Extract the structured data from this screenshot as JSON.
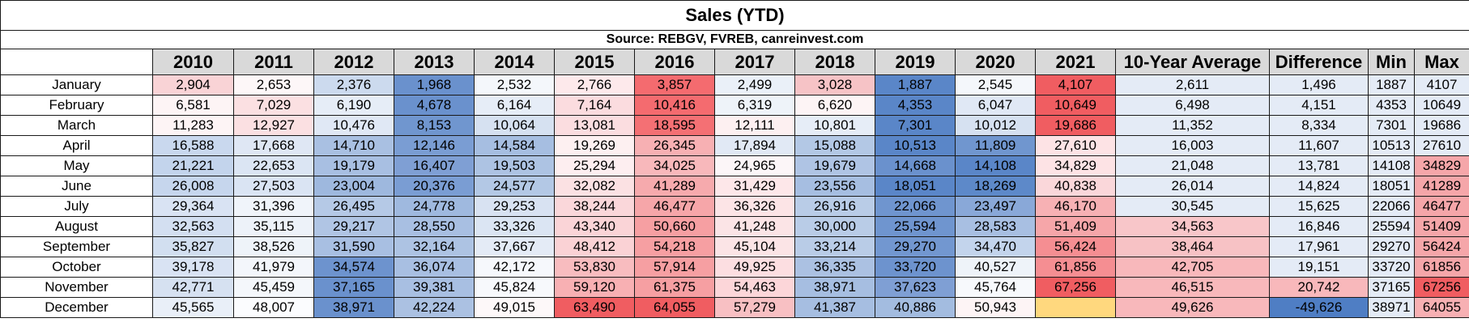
{
  "title": "Sales (YTD)",
  "source": "Source: REBGV, FVREB, canreinvest.com",
  "columns": [
    "2010",
    "2011",
    "2012",
    "2013",
    "2014",
    "2015",
    "2016",
    "2017",
    "2018",
    "2019",
    "2020",
    "2021",
    "10-Year Average",
    "Difference",
    "Min",
    "Max"
  ],
  "rows": [
    {
      "month": "January",
      "cells": [
        {
          "v": "2,904",
          "bg": "#f9d3d6"
        },
        {
          "v": "2,653",
          "bg": "#fdf7f8"
        },
        {
          "v": "2,376",
          "bg": "#ccdaee"
        },
        {
          "v": "1,968",
          "bg": "#6a91cd"
        },
        {
          "v": "2,532",
          "bg": "#f4f7fb"
        },
        {
          "v": "2,766",
          "bg": "#fde9eb"
        },
        {
          "v": "3,857",
          "bg": "#f46b6f"
        },
        {
          "v": "2,499",
          "bg": "#eaf0f8"
        },
        {
          "v": "3,028",
          "bg": "#f6c3c6"
        },
        {
          "v": "1,887",
          "bg": "#5a86c8"
        },
        {
          "v": "2,545",
          "bg": "#f4f7fb"
        },
        {
          "v": "4,107",
          "bg": "#f05d61"
        },
        {
          "v": "2,611",
          "bg": "#e4ebf6"
        },
        {
          "v": "1,496",
          "bg": "#e4ebf6"
        },
        {
          "v": "1887",
          "bg": "#e4ebf6"
        },
        {
          "v": "4107",
          "bg": "#e4ebf6"
        }
      ]
    },
    {
      "month": "February",
      "cells": [
        {
          "v": "6,581",
          "bg": "#fdf4f5"
        },
        {
          "v": "7,029",
          "bg": "#fbe0e2"
        },
        {
          "v": "6,190",
          "bg": "#e6edf7"
        },
        {
          "v": "4,678",
          "bg": "#6a91cd"
        },
        {
          "v": "6,164",
          "bg": "#e6edf7"
        },
        {
          "v": "7,164",
          "bg": "#fbdcdf"
        },
        {
          "v": "10,416",
          "bg": "#f46b6f"
        },
        {
          "v": "6,319",
          "bg": "#eef3f9"
        },
        {
          "v": "6,620",
          "bg": "#fdf4f5"
        },
        {
          "v": "4,353",
          "bg": "#5a86c8"
        },
        {
          "v": "6,047",
          "bg": "#e0e8f5"
        },
        {
          "v": "10,649",
          "bg": "#f05d61"
        },
        {
          "v": "6,498",
          "bg": "#e4ebf6"
        },
        {
          "v": "4,151",
          "bg": "#e4ebf6"
        },
        {
          "v": "4353",
          "bg": "#e4ebf6"
        },
        {
          "v": "10649",
          "bg": "#e4ebf6"
        }
      ]
    },
    {
      "month": "March",
      "cells": [
        {
          "v": "11,283",
          "bg": "#fdf4f5"
        },
        {
          "v": "12,927",
          "bg": "#fbe0e2"
        },
        {
          "v": "10,476",
          "bg": "#e0e8f5"
        },
        {
          "v": "8,153",
          "bg": "#7096cf"
        },
        {
          "v": "10,064",
          "bg": "#d6e1f1"
        },
        {
          "v": "13,081",
          "bg": "#fbdde0"
        },
        {
          "v": "18,595",
          "bg": "#f47074"
        },
        {
          "v": "12,111",
          "bg": "#fdf0f1"
        },
        {
          "v": "10,801",
          "bg": "#e6edf7"
        },
        {
          "v": "7,301",
          "bg": "#5a86c8"
        },
        {
          "v": "10,012",
          "bg": "#d6e1f1"
        },
        {
          "v": "19,686",
          "bg": "#f05d61"
        },
        {
          "v": "11,352",
          "bg": "#e4ebf6"
        },
        {
          "v": "8,334",
          "bg": "#e4ebf6"
        },
        {
          "v": "7301",
          "bg": "#e4ebf6"
        },
        {
          "v": "19686",
          "bg": "#e4ebf6"
        }
      ]
    },
    {
      "month": "April",
      "cells": [
        {
          "v": "16,588",
          "bg": "#c9d8ee"
        },
        {
          "v": "17,668",
          "bg": "#dfe7f4"
        },
        {
          "v": "14,710",
          "bg": "#a9c0e2"
        },
        {
          "v": "12,146",
          "bg": "#7a9dd3"
        },
        {
          "v": "14,584",
          "bg": "#a6bee1"
        },
        {
          "v": "19,269",
          "bg": "#fdf0f1"
        },
        {
          "v": "26,345",
          "bg": "#f7b0b3"
        },
        {
          "v": "17,894",
          "bg": "#e1e9f5"
        },
        {
          "v": "15,088",
          "bg": "#b3c8e5"
        },
        {
          "v": "10,513",
          "bg": "#5a86c8"
        },
        {
          "v": "11,809",
          "bg": "#7096cf"
        },
        {
          "v": "27,610",
          "bg": "#fde3e5"
        },
        {
          "v": "16,003",
          "bg": "#e4ebf6"
        },
        {
          "v": "11,607",
          "bg": "#e4ebf6"
        },
        {
          "v": "10513",
          "bg": "#e4ebf6"
        },
        {
          "v": "27610",
          "bg": "#e4ebf6"
        }
      ]
    },
    {
      "month": "May",
      "cells": [
        {
          "v": "21,221",
          "bg": "#c3d4ec"
        },
        {
          "v": "22,653",
          "bg": "#dbe5f3"
        },
        {
          "v": "19,179",
          "bg": "#a8bfe2"
        },
        {
          "v": "16,407",
          "bg": "#7f9fd4"
        },
        {
          "v": "19,503",
          "bg": "#adc3e3"
        },
        {
          "v": "25,294",
          "bg": "#fdeef0"
        },
        {
          "v": "34,025",
          "bg": "#f8b8bb"
        },
        {
          "v": "24,965",
          "bg": "#fcf6f8"
        },
        {
          "v": "19,679",
          "bg": "#afc4e4"
        },
        {
          "v": "14,668",
          "bg": "#6a91cd"
        },
        {
          "v": "14,108",
          "bg": "#5a86c8"
        },
        {
          "v": "34,829",
          "bg": "#fde3e5"
        },
        {
          "v": "21,048",
          "bg": "#e4ebf6"
        },
        {
          "v": "13,781",
          "bg": "#e4ebf6"
        },
        {
          "v": "14108",
          "bg": "#e4ebf6"
        },
        {
          "v": "34829",
          "bg": "#f5a6a9"
        }
      ]
    },
    {
      "month": "June",
      "cells": [
        {
          "v": "26,008",
          "bg": "#c6d6ed"
        },
        {
          "v": "27,503",
          "bg": "#dae4f3"
        },
        {
          "v": "23,004",
          "bg": "#9eb8de"
        },
        {
          "v": "20,376",
          "bg": "#7a9dd3"
        },
        {
          "v": "24,577",
          "bg": "#b3c8e5"
        },
        {
          "v": "32,082",
          "bg": "#fbe1e3"
        },
        {
          "v": "41,289",
          "bg": "#f6aaad"
        },
        {
          "v": "31,429",
          "bg": "#fde7e9"
        },
        {
          "v": "23,556",
          "bg": "#a6bee1"
        },
        {
          "v": "18,051",
          "bg": "#5a86c8"
        },
        {
          "v": "18,269",
          "bg": "#5d89c9"
        },
        {
          "v": "40,838",
          "bg": "#fad7da"
        },
        {
          "v": "26,014",
          "bg": "#e4ebf6"
        },
        {
          "v": "14,824",
          "bg": "#e4ebf6"
        },
        {
          "v": "18051",
          "bg": "#e4ebf6"
        },
        {
          "v": "41289",
          "bg": "#f5a6a9"
        }
      ]
    },
    {
      "month": "July",
      "cells": [
        {
          "v": "29,364",
          "bg": "#d9e3f3"
        },
        {
          "v": "31,396",
          "bg": "#f0f4fa"
        },
        {
          "v": "26,495",
          "bg": "#b5c9e6"
        },
        {
          "v": "24,778",
          "bg": "#9fb9df"
        },
        {
          "v": "29,253",
          "bg": "#d8e2f2"
        },
        {
          "v": "38,244",
          "bg": "#fad7da"
        },
        {
          "v": "46,477",
          "bg": "#f6a6a9"
        },
        {
          "v": "36,326",
          "bg": "#fce4e6"
        },
        {
          "v": "26,916",
          "bg": "#b9cce7"
        },
        {
          "v": "22,066",
          "bg": "#6f95cf"
        },
        {
          "v": "23,497",
          "bg": "#89a8d8"
        },
        {
          "v": "46,170",
          "bg": "#f7b1b4"
        },
        {
          "v": "30,545",
          "bg": "#e4ebf6"
        },
        {
          "v": "15,625",
          "bg": "#e4ebf6"
        },
        {
          "v": "22066",
          "bg": "#e4ebf6"
        },
        {
          "v": "46477",
          "bg": "#f5a6a9"
        }
      ]
    },
    {
      "month": "August",
      "cells": [
        {
          "v": "32,563",
          "bg": "#d3dff1"
        },
        {
          "v": "35,115",
          "bg": "#edf2f9"
        },
        {
          "v": "29,217",
          "bg": "#b0c5e4"
        },
        {
          "v": "28,550",
          "bg": "#a8bfe2"
        },
        {
          "v": "33,326",
          "bg": "#dbe5f3"
        },
        {
          "v": "43,340",
          "bg": "#fad4d7"
        },
        {
          "v": "50,660",
          "bg": "#f69fa2"
        },
        {
          "v": "41,248",
          "bg": "#fbe4e6"
        },
        {
          "v": "30,000",
          "bg": "#b9cce7"
        },
        {
          "v": "25,594",
          "bg": "#6f95cf"
        },
        {
          "v": "28,583",
          "bg": "#a8bfe2"
        },
        {
          "v": "51,409",
          "bg": "#f6a6a9"
        },
        {
          "v": "34,563",
          "bg": "#f8c6c9"
        },
        {
          "v": "16,846",
          "bg": "#e4ebf6"
        },
        {
          "v": "25594",
          "bg": "#e4ebf6"
        },
        {
          "v": "51409",
          "bg": "#f5a6a9"
        }
      ]
    },
    {
      "month": "September",
      "cells": [
        {
          "v": "35,827",
          "bg": "#d2dff0"
        },
        {
          "v": "38,526",
          "bg": "#eef3f9"
        },
        {
          "v": "31,590",
          "bg": "#a8bfe2"
        },
        {
          "v": "32,164",
          "bg": "#adc3e3"
        },
        {
          "v": "37,667",
          "bg": "#e4ebf6"
        },
        {
          "v": "48,412",
          "bg": "#fad2d5"
        },
        {
          "v": "54,218",
          "bg": "#f69fa2"
        },
        {
          "v": "45,104",
          "bg": "#fbe4e6"
        },
        {
          "v": "33,214",
          "bg": "#b9cce7"
        },
        {
          "v": "29,270",
          "bg": "#7297d0"
        },
        {
          "v": "34,470",
          "bg": "#c3d4ec"
        },
        {
          "v": "56,424",
          "bg": "#f58e92"
        },
        {
          "v": "38,464",
          "bg": "#f7c2c5"
        },
        {
          "v": "17,961",
          "bg": "#e4ebf6"
        },
        {
          "v": "29270",
          "bg": "#e4ebf6"
        },
        {
          "v": "56424",
          "bg": "#f5a6a9"
        }
      ]
    },
    {
      "month": "October",
      "cells": [
        {
          "v": "39,178",
          "bg": "#d9e3f3"
        },
        {
          "v": "41,979",
          "bg": "#f3f6fb"
        },
        {
          "v": "34,574",
          "bg": "#6d93ce"
        },
        {
          "v": "36,074",
          "bg": "#a8bfe2"
        },
        {
          "v": "42,172",
          "bg": "#f6f8fc"
        },
        {
          "v": "53,830",
          "bg": "#f8bcbf"
        },
        {
          "v": "57,914",
          "bg": "#f69fa2"
        },
        {
          "v": "49,925",
          "bg": "#fcdee1"
        },
        {
          "v": "36,335",
          "bg": "#abc1e2"
        },
        {
          "v": "33,720",
          "bg": "#6d93ce"
        },
        {
          "v": "40,527",
          "bg": "#eef3f9"
        },
        {
          "v": "61,856",
          "bg": "#f58e92"
        },
        {
          "v": "42,705",
          "bg": "#f8b8bb"
        },
        {
          "v": "19,151",
          "bg": "#e4ebf6"
        },
        {
          "v": "33720",
          "bg": "#e4ebf6"
        },
        {
          "v": "61856",
          "bg": "#f5a6a9"
        }
      ]
    },
    {
      "month": "November",
      "cells": [
        {
          "v": "42,771",
          "bg": "#d6e1f1"
        },
        {
          "v": "45,459",
          "bg": "#f4f7fb"
        },
        {
          "v": "37,165",
          "bg": "#6a91cd"
        },
        {
          "v": "39,381",
          "bg": "#a8bfe2"
        },
        {
          "v": "45,824",
          "bg": "#f7f9fc"
        },
        {
          "v": "59,120",
          "bg": "#f8b0b3"
        },
        {
          "v": "61,375",
          "bg": "#f69fa2"
        },
        {
          "v": "54,463",
          "bg": "#fcd6d9"
        },
        {
          "v": "38,971",
          "bg": "#a6bee1"
        },
        {
          "v": "37,623",
          "bg": "#7f9fd4"
        },
        {
          "v": "45,764",
          "bg": "#f7f9fc"
        },
        {
          "v": "67,256",
          "bg": "#f05d61"
        },
        {
          "v": "46,515",
          "bg": "#f8b8bb"
        },
        {
          "v": "20,742",
          "bg": "#f8b8bb"
        },
        {
          "v": "37165",
          "bg": "#e4ebf6"
        },
        {
          "v": "67256",
          "bg": "#f05d61"
        }
      ]
    },
    {
      "month": "December",
      "cells": [
        {
          "v": "45,565",
          "bg": "#e9eff8"
        },
        {
          "v": "48,007",
          "bg": "#fbfcfe"
        },
        {
          "v": "38,971",
          "bg": "#6a91cd"
        },
        {
          "v": "42,224",
          "bg": "#abc1e2"
        },
        {
          "v": "49,015",
          "bg": "#fdf8f9"
        },
        {
          "v": "63,490",
          "bg": "#f05d61"
        },
        {
          "v": "64,055",
          "bg": "#f05d61"
        },
        {
          "v": "57,279",
          "bg": "#f8c0c3"
        },
        {
          "v": "41,387",
          "bg": "#a6bee1"
        },
        {
          "v": "40,886",
          "bg": "#a3bce0"
        },
        {
          "v": "50,943",
          "bg": "#fdf4f5"
        },
        {
          "v": "",
          "bg": "#ffd87e"
        },
        {
          "v": "49,626",
          "bg": "#f8b8bb"
        },
        {
          "v": "-49,626",
          "bg": "#4f7ec4",
          "neg": true
        },
        {
          "v": "38971",
          "bg": "#e4ebf6"
        },
        {
          "v": "64055",
          "bg": "#f7b0b3"
        }
      ]
    }
  ]
}
